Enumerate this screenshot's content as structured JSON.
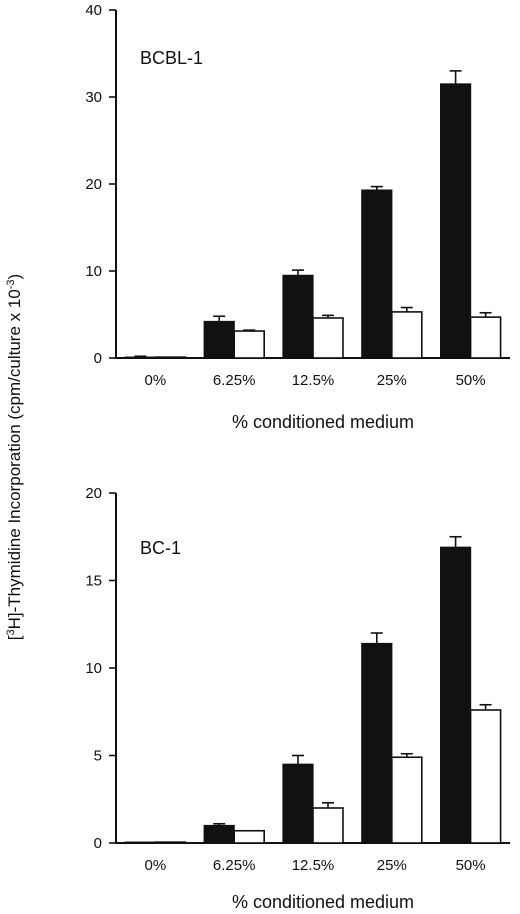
{
  "figure": {
    "ylabel_prefix": "[",
    "ylabel_sup": "3",
    "ylabel_main": "H]-Thymidine Incorporation (cpm/culture x 10",
    "ylabel_exp": "-3",
    "ylabel_suffix": ")"
  },
  "chart_data": [
    {
      "type": "bar",
      "title": "BCBL-1",
      "xlabel": "% conditioned medium",
      "categories": [
        "0%",
        "6.25%",
        "12.5%",
        "25%",
        "50%"
      ],
      "ylim": [
        0,
        40
      ],
      "yticks": [
        0,
        10,
        20,
        30,
        40
      ],
      "grid": false,
      "legend": "none",
      "series": [
        {
          "fill": "solid",
          "values": [
            0.1,
            4.2,
            9.5,
            19.3,
            31.5
          ],
          "errors": [
            0.1,
            0.6,
            0.6,
            0.4,
            1.5
          ]
        },
        {
          "fill": "open",
          "values": [
            0.1,
            3.1,
            4.6,
            5.3,
            4.7
          ],
          "errors": [
            0.05,
            0.1,
            0.3,
            0.5,
            0.5
          ]
        }
      ]
    },
    {
      "type": "bar",
      "title": "BC-1",
      "xlabel": "% conditioned medium",
      "categories": [
        "0%",
        "6.25%",
        "12.5%",
        "25%",
        "50%"
      ],
      "ylim": [
        0,
        20
      ],
      "yticks": [
        0,
        5,
        10,
        15,
        20
      ],
      "grid": false,
      "legend": "none",
      "series": [
        {
          "fill": "solid",
          "values": [
            0.05,
            1.0,
            4.5,
            11.4,
            16.9
          ],
          "errors": [
            0.05,
            0.1,
            0.5,
            0.6,
            0.6
          ]
        },
        {
          "fill": "open",
          "values": [
            0.05,
            0.7,
            2.0,
            4.9,
            7.6
          ],
          "errors": [
            0.05,
            0.05,
            0.3,
            0.2,
            0.3
          ]
        }
      ]
    }
  ]
}
